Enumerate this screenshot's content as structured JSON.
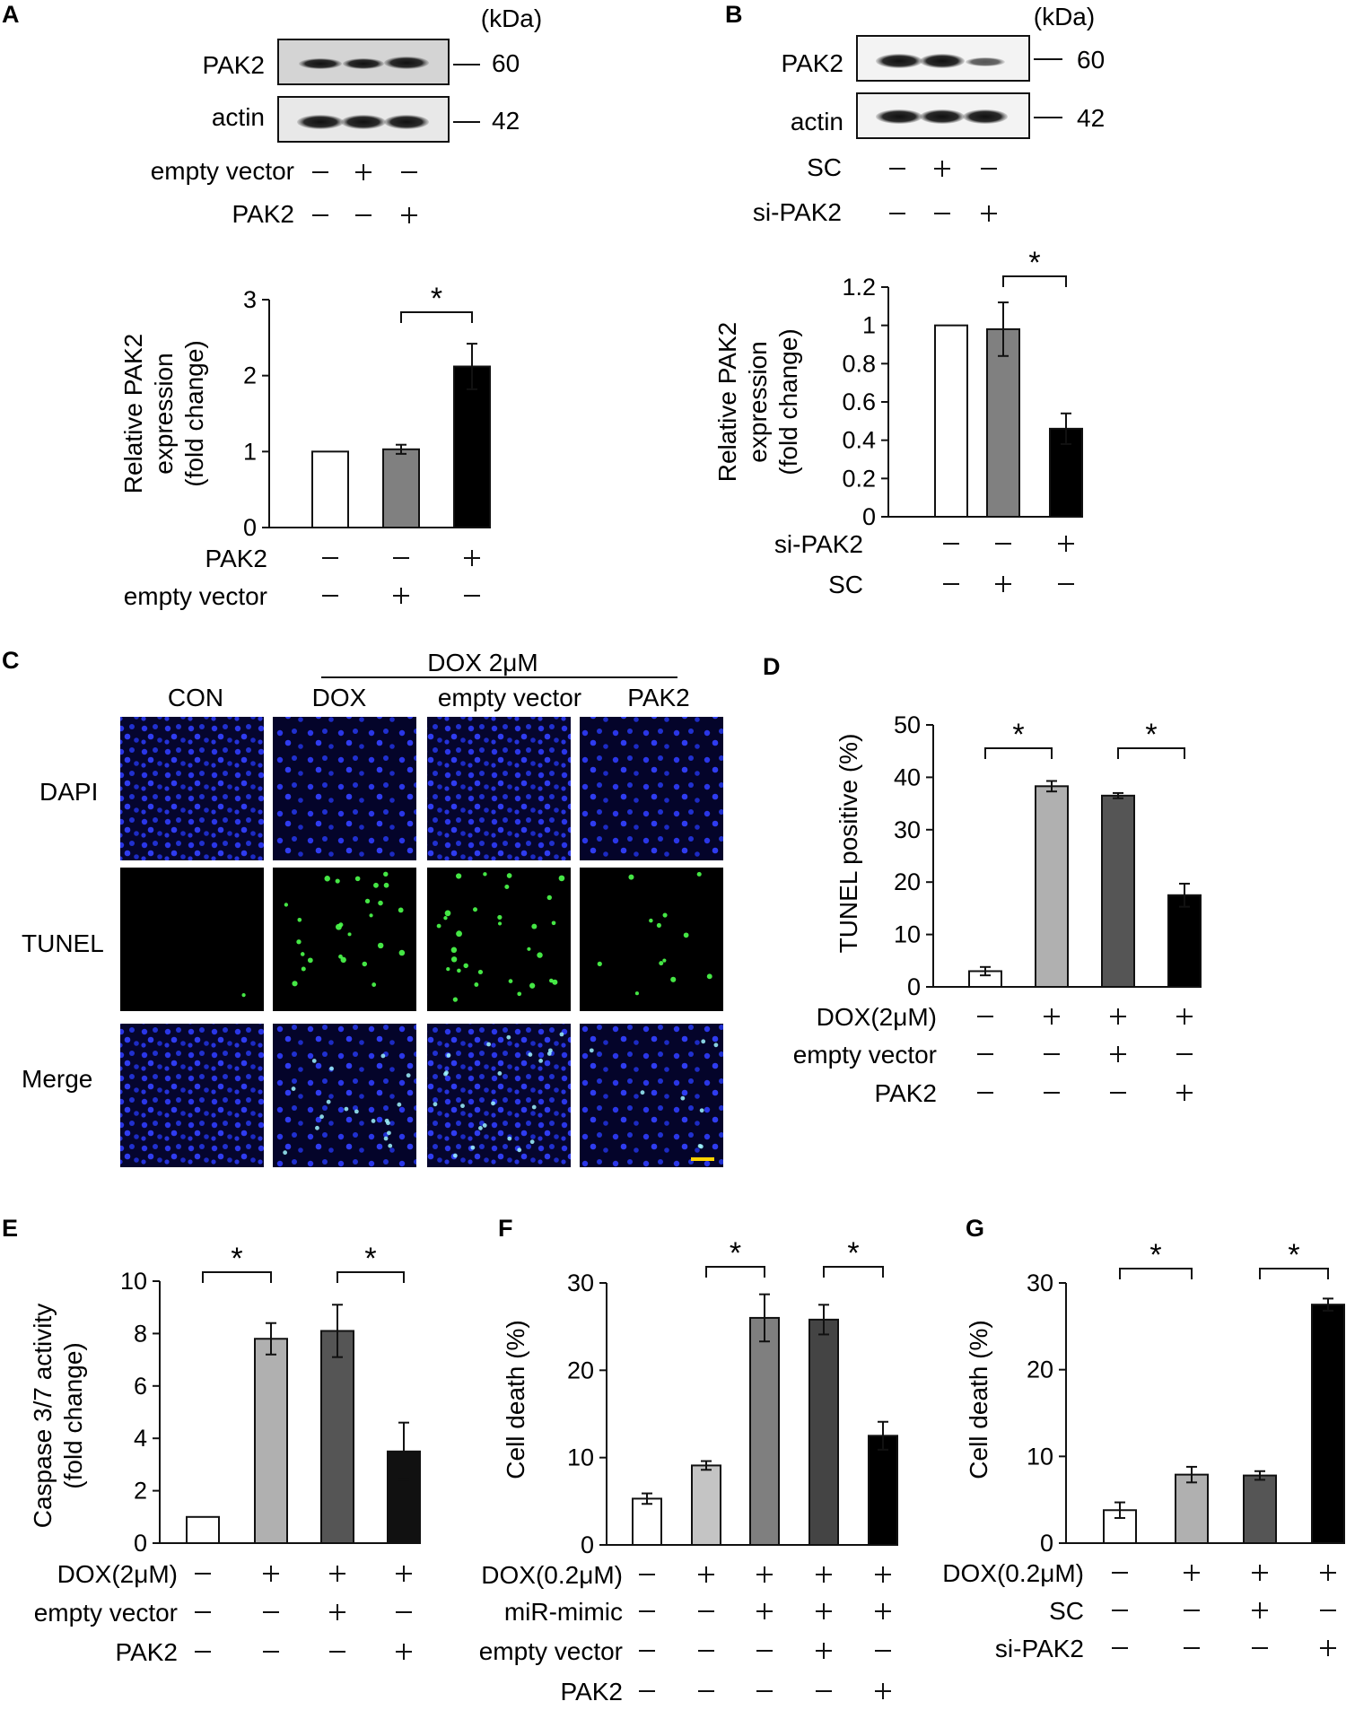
{
  "panels": {
    "A": {
      "label": "A",
      "kda": "(kDa)",
      "blots": [
        {
          "name": "PAK2",
          "size": "60"
        },
        {
          "name": "actin",
          "size": "42"
        }
      ],
      "conditions": [
        {
          "label": "empty vector",
          "marks": [
            "−",
            "+",
            "−"
          ]
        },
        {
          "label": "PAK2",
          "marks": [
            "−",
            "−",
            "+"
          ]
        }
      ]
    },
    "B": {
      "label": "B",
      "kda": "(kDa)",
      "blots": [
        {
          "name": "PAK2",
          "size": "60"
        },
        {
          "name": "actin",
          "size": "42"
        }
      ],
      "conditions": [
        {
          "label": "SC",
          "marks": [
            "−",
            "+",
            "−"
          ]
        },
        {
          "label": "si-PAK2",
          "marks": [
            "−",
            "−",
            "+"
          ]
        }
      ]
    },
    "C": {
      "label": "C",
      "header": "DOX 2μM",
      "columns": [
        "CON",
        "DOX",
        "empty vector",
        "PAK2"
      ],
      "rows": [
        "DAPI",
        "TUNEL",
        "Merge"
      ]
    },
    "D": {
      "label": "D"
    },
    "E": {
      "label": "E"
    },
    "F": {
      "label": "F"
    },
    "G": {
      "label": "G"
    }
  },
  "chart_data": [
    {
      "id": "A",
      "type": "bar",
      "ylabel": [
        "Relative PAK2",
        "expression",
        "(fold change)"
      ],
      "ylim": [
        0,
        3
      ],
      "yticks": [
        0,
        1,
        2,
        3
      ],
      "ytick_labels": [
        "0",
        "1",
        "2",
        "3"
      ],
      "values": [
        1.0,
        1.03,
        2.12
      ],
      "errors": [
        0,
        0.06,
        0.3
      ],
      "colors": [
        "#ffffff",
        "#808080",
        "#000000"
      ],
      "conditions": [
        {
          "label": "PAK2",
          "marks": [
            "−",
            "−",
            "+"
          ]
        },
        {
          "label": "empty vector",
          "marks": [
            "−",
            "+",
            "−"
          ]
        }
      ],
      "significance": [
        {
          "from": 1,
          "to": 2,
          "label": "*"
        }
      ]
    },
    {
      "id": "B",
      "type": "bar",
      "ylabel": [
        "Relative PAK2",
        "expression",
        "(fold change)"
      ],
      "ylim": [
        0,
        1.2
      ],
      "yticks": [
        0,
        0.2,
        0.4,
        0.6,
        0.8,
        1,
        1.2
      ],
      "ytick_labels": [
        "0",
        "0.2",
        "0.4",
        "0.6",
        "0.8",
        "1",
        "1.2"
      ],
      "values": [
        1.0,
        0.98,
        0.46
      ],
      "errors": [
        0,
        0.14,
        0.08
      ],
      "colors": [
        "#ffffff",
        "#808080",
        "#000000"
      ],
      "conditions": [
        {
          "label": "si-PAK2",
          "marks": [
            "−",
            "−",
            "+"
          ]
        },
        {
          "label": "SC",
          "marks": [
            "−",
            "+",
            "−"
          ]
        }
      ],
      "significance": [
        {
          "from": 1,
          "to": 2,
          "label": "*"
        }
      ]
    },
    {
      "id": "D",
      "type": "bar",
      "ylabel": [
        "TUNEL positive (%)"
      ],
      "ylim": [
        0,
        50
      ],
      "yticks": [
        0,
        10,
        20,
        30,
        40,
        50
      ],
      "ytick_labels": [
        "0",
        "10",
        "20",
        "30",
        "40",
        "50"
      ],
      "values": [
        3.0,
        38.3,
        36.5,
        17.5
      ],
      "errors": [
        0.8,
        1.0,
        0.5,
        2.2
      ],
      "colors": [
        "#ffffff",
        "#b0b0b0",
        "#555555",
        "#000000"
      ],
      "conditions": [
        {
          "label": "DOX(2μM)",
          "marks": [
            "−",
            "+",
            "+",
            "+"
          ]
        },
        {
          "label": "empty vector",
          "marks": [
            "−",
            "−",
            "+",
            "−"
          ]
        },
        {
          "label": "PAK2",
          "marks": [
            "−",
            "−",
            "−",
            "+"
          ]
        }
      ],
      "significance": [
        {
          "from": 0,
          "to": 1,
          "label": "*"
        },
        {
          "from": 2,
          "to": 3,
          "label": "*"
        }
      ]
    },
    {
      "id": "E",
      "type": "bar",
      "ylabel": [
        "Caspase 3/7 activity",
        "(fold change)"
      ],
      "ylim": [
        0,
        10
      ],
      "yticks": [
        0,
        2,
        4,
        6,
        8,
        10
      ],
      "ytick_labels": [
        "0",
        "2",
        "4",
        "6",
        "8",
        "10"
      ],
      "values": [
        1.0,
        7.8,
        8.1,
        3.5
      ],
      "errors": [
        0,
        0.6,
        1.0,
        1.1
      ],
      "colors": [
        "#ffffff",
        "#b0b0b0",
        "#555555",
        "#111111"
      ],
      "conditions": [
        {
          "label": "DOX(2μM)",
          "marks": [
            "−",
            "+",
            "+",
            "+"
          ]
        },
        {
          "label": "empty vector",
          "marks": [
            "−",
            "−",
            "+",
            "−"
          ]
        },
        {
          "label": "PAK2",
          "marks": [
            "−",
            "−",
            "−",
            "+"
          ]
        }
      ],
      "significance": [
        {
          "from": 0,
          "to": 1,
          "label": "*"
        },
        {
          "from": 2,
          "to": 3,
          "label": "*"
        }
      ]
    },
    {
      "id": "F",
      "type": "bar",
      "ylabel": [
        "Cell death (%)"
      ],
      "ylim": [
        0,
        30
      ],
      "yticks": [
        0,
        10,
        20,
        30
      ],
      "ytick_labels": [
        "0",
        "10",
        "20",
        "30"
      ],
      "values": [
        5.3,
        9.1,
        26.0,
        25.8,
        12.5
      ],
      "errors": [
        0.6,
        0.5,
        2.7,
        1.7,
        1.6
      ],
      "colors": [
        "#ffffff",
        "#c4c4c4",
        "#7f7f7f",
        "#444444",
        "#000000"
      ],
      "conditions": [
        {
          "label": "DOX(0.2μM)",
          "marks": [
            "−",
            "+",
            "+",
            "+",
            "+"
          ]
        },
        {
          "label": "miR-mimic",
          "marks": [
            "−",
            "−",
            "+",
            "+",
            "+"
          ]
        },
        {
          "label": "empty vector",
          "marks": [
            "−",
            "−",
            "−",
            "+",
            "−"
          ]
        },
        {
          "label": "PAK2",
          "marks": [
            "−",
            "−",
            "−",
            "−",
            "+"
          ]
        }
      ],
      "significance": [
        {
          "from": 1,
          "to": 2,
          "label": "*"
        },
        {
          "from": 3,
          "to": 4,
          "label": "*"
        }
      ]
    },
    {
      "id": "G",
      "type": "bar",
      "ylabel": [
        "Cell death (%)"
      ],
      "ylim": [
        0,
        30
      ],
      "yticks": [
        0,
        10,
        20,
        30
      ],
      "ytick_labels": [
        "0",
        "10",
        "20",
        "30"
      ],
      "values": [
        3.8,
        7.9,
        7.8,
        27.5
      ],
      "errors": [
        0.9,
        0.9,
        0.5,
        0.7
      ],
      "colors": [
        "#ffffff",
        "#b0b0b0",
        "#555555",
        "#000000"
      ],
      "conditions": [
        {
          "label": "DOX(0.2μM)",
          "marks": [
            "−",
            "+",
            "+",
            "+"
          ]
        },
        {
          "label": "SC",
          "marks": [
            "−",
            "−",
            "+",
            "−"
          ]
        },
        {
          "label": "si-PAK2",
          "marks": [
            "−",
            "−",
            "−",
            "+"
          ]
        }
      ],
      "significance": [
        {
          "from": 0,
          "to": 1,
          "label": "*"
        },
        {
          "from": 2,
          "to": 3,
          "label": "*"
        }
      ]
    }
  ]
}
